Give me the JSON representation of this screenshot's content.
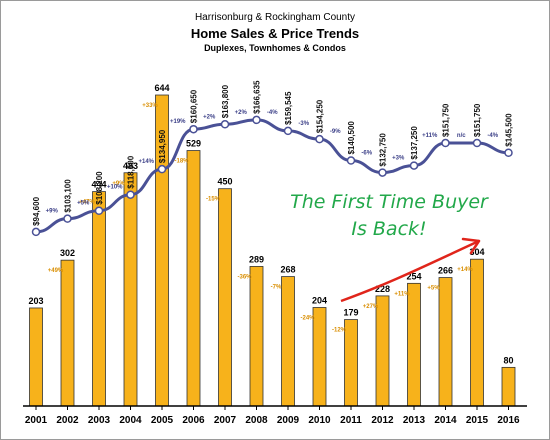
{
  "chart_data": {
    "type": "bar",
    "title": "Harrisonburg & Rockingham County",
    "subtitle": "Home Sales & Price Trends",
    "subtitle2": "Duplexes, Townhomes & Condos",
    "categories": [
      "2001",
      "2002",
      "2003",
      "2004",
      "2005",
      "2006",
      "2007",
      "2008",
      "2009",
      "2010",
      "2011",
      "2012",
      "2013",
      "2014",
      "2015",
      "2016"
    ],
    "series": [
      {
        "kind": "bar",
        "values": [
          203,
          302,
          444,
          483,
          644,
          529,
          450,
          289,
          268,
          204,
          179,
          228,
          254,
          266,
          304,
          80
        ],
        "labels": [
          "203",
          "302",
          "444",
          "483",
          "644",
          "529",
          "450",
          "289",
          "268",
          "204",
          "179",
          "228",
          "254",
          "266",
          "304",
          "80"
        ],
        "change_labels": [
          "",
          "+49%",
          "+47%",
          "+9%",
          "+33%",
          "-18%",
          "-15%",
          "-36%",
          "-7%",
          "-24%",
          "-12%",
          "+27%",
          "+11%",
          "+5%",
          "+14%",
          ""
        ],
        "color": "#f7b21b"
      },
      {
        "kind": "line",
        "values": [
          94600,
          103100,
          108200,
          118500,
          134950,
          160650,
          163800,
          166635,
          159545,
          154250,
          140500,
          132750,
          137250,
          151750,
          151750,
          145500
        ],
        "labels": [
          "$94,600",
          "$103,100",
          "$108,200",
          "$118,500",
          "$134,950",
          "$160,650",
          "$163,800",
          "$166,635",
          "$159,545",
          "$154,250",
          "$140,500",
          "$132,750",
          "$137,250",
          "$151,750",
          "$151,750",
          "$145,500"
        ],
        "change_labels": [
          "+9%",
          "+5%",
          "+10%",
          "+14%",
          "+19%",
          "+2%",
          "+2%",
          "-4%",
          "-3%",
          "-9%",
          "-6%",
          "+3%",
          "+11%",
          "n/c",
          "-4%"
        ],
        "color": "#4a5196"
      }
    ],
    "sales_ylim": [
      0,
      700
    ],
    "price_ylim": [
      0,
      200000
    ],
    "grid": false,
    "annotation": {
      "line1": "The First Time Buyer",
      "line2": "Is Back!",
      "arrow_color": "#e0251b",
      "text_color": "#22a84a"
    }
  }
}
